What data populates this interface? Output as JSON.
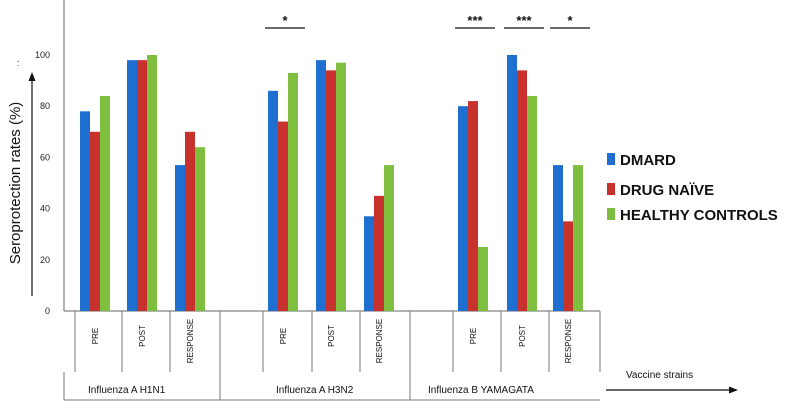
{
  "chart_data": {
    "type": "bar",
    "ylabel": "Seroprotection rates (%)",
    "ylim": [
      0,
      100
    ],
    "yticks": [
      "0",
      "20",
      "40",
      "60",
      "80",
      "100"
    ],
    "groups": [
      {
        "label": "Influenza A  H1N1",
        "categories": [
          "PRE",
          "POST",
          "RESPONSE"
        ]
      },
      {
        "label": "Influenza  A  H3N2",
        "categories": [
          "PRE",
          "POST",
          "RESPONSE"
        ]
      },
      {
        "label": "Influenza B    YAMAGATA",
        "categories": [
          "PRE",
          "POST",
          "RESPONSE"
        ]
      }
    ],
    "series": [
      {
        "name": "DMARD",
        "color": "#1f6fd1",
        "values": [
          78,
          98,
          57,
          86,
          98,
          37,
          80,
          100,
          57
        ]
      },
      {
        "name": "DRUG NAÏVE",
        "color": "#c8322c",
        "values": [
          70,
          98,
          70,
          74,
          94,
          45,
          82,
          94,
          35
        ]
      },
      {
        "name": "HEALTHY CONTROLS",
        "color": "#7fbf3f",
        "values": [
          84,
          100,
          64,
          93,
          97,
          57,
          25,
          84,
          57
        ]
      }
    ],
    "significance": [
      {
        "group": 1,
        "category": 0,
        "label": "*"
      },
      {
        "group": 2,
        "category": 0,
        "label": "***"
      },
      {
        "group": 2,
        "category": 1,
        "label": "***"
      },
      {
        "group": 2,
        "category": 2,
        "label": "*"
      }
    ],
    "xlabel": "Vaccine strains",
    "legend_position": "right"
  }
}
